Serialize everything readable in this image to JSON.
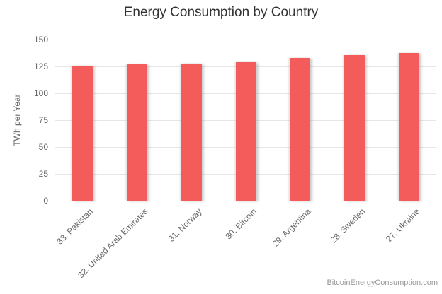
{
  "chart_data": {
    "type": "bar",
    "title": "Energy Consumption by Country",
    "xlabel": "",
    "ylabel": "TWh per Year",
    "categories": [
      "33. Pakistan",
      "32. United Arab Emirates",
      "31. Norway",
      "30. Bitcoin",
      "29. Argentina",
      "28. Sweden",
      "27. Ukraine"
    ],
    "values": [
      125.9,
      127.2,
      127.6,
      128.8,
      132.7,
      135.6,
      137.5
    ],
    "yticks": [
      0,
      25,
      50,
      75,
      100,
      125,
      150
    ],
    "ylim": [
      0,
      150
    ],
    "grid": true,
    "legend": "none",
    "bar_color": "#f45b5b"
  },
  "credits": {
    "label": "BitcoinEnergyConsumption.com"
  },
  "colors": {
    "title": "#333333",
    "tick_labels": "#666666",
    "gridline": "#e6e6e6",
    "axis_line": "#ccd6eb",
    "bar": "#f45b5b",
    "credits": "#999999"
  }
}
